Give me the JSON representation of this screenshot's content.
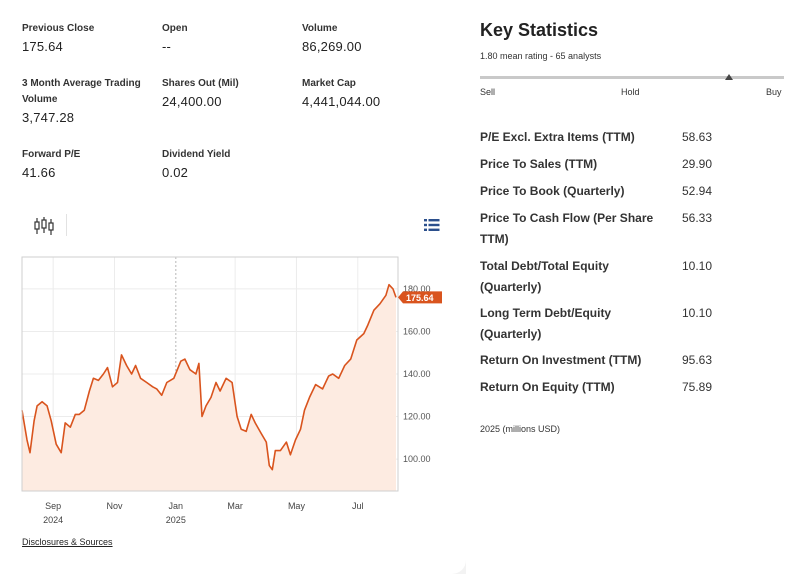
{
  "overview": {
    "stats": [
      {
        "label": "Previous Close",
        "value": "175.64"
      },
      {
        "label": "Open",
        "value": "--"
      },
      {
        "label": "Volume",
        "value": "86,269.00"
      },
      {
        "label": "3 Month Average Trading Volume",
        "value": "3,747.28"
      },
      {
        "label": "Shares Out (Mil)",
        "value": "24,400.00"
      },
      {
        "label": "Market Cap",
        "value": "4,441,044.00"
      },
      {
        "label": "Forward P/E",
        "value": "41.66"
      },
      {
        "label": "Dividend Yield",
        "value": "0.02"
      }
    ]
  },
  "toolbar": {
    "chart_type_icon": "candlestick-icon",
    "menu_icon": "list-menu-icon"
  },
  "chart_data": {
    "type": "area",
    "title": "",
    "ylim": [
      85,
      195
    ],
    "y_ticks": [
      "100.00",
      "120.00",
      "140.00",
      "160.00",
      "180.00"
    ],
    "x_ticks": [
      {
        "label": "Sep",
        "sub": "2024"
      },
      {
        "label": "Nov",
        "sub": ""
      },
      {
        "label": "Jan",
        "sub": "2025"
      },
      {
        "label": "Mar",
        "sub": ""
      },
      {
        "label": "May",
        "sub": ""
      },
      {
        "label": "Jul",
        "sub": ""
      }
    ],
    "last_price_label": "175.64",
    "grid": true,
    "colors": {
      "line": "#d9541e",
      "fill": "#fdebe1",
      "badge": "#d9541e"
    },
    "series": [
      {
        "x": [
          "2024-08-01",
          "2024-08-06",
          "2024-08-09",
          "2024-08-13",
          "2024-08-16",
          "2024-08-21",
          "2024-08-26",
          "2024-08-30",
          "2024-09-04",
          "2024-09-09",
          "2024-09-13",
          "2024-09-18",
          "2024-09-23",
          "2024-09-27",
          "2024-10-02",
          "2024-10-07",
          "2024-10-11",
          "2024-10-16",
          "2024-10-21",
          "2024-10-25",
          "2024-10-30",
          "2024-11-04",
          "2024-11-08",
          "2024-11-13",
          "2024-11-18",
          "2024-11-22",
          "2024-11-27",
          "2024-12-03",
          "2024-12-09",
          "2024-12-13",
          "2024-12-18",
          "2024-12-23",
          "2024-12-30",
          "2025-01-06",
          "2025-01-10",
          "2025-01-15",
          "2025-01-21",
          "2025-01-24",
          "2025-01-27",
          "2025-01-31",
          "2025-02-05",
          "2025-02-10",
          "2025-02-14",
          "2025-02-20",
          "2025-02-26",
          "2025-03-03",
          "2025-03-07",
          "2025-03-12",
          "2025-03-17",
          "2025-03-21",
          "2025-03-27",
          "2025-04-01",
          "2025-04-04",
          "2025-04-07",
          "2025-04-10",
          "2025-04-15",
          "2025-04-21",
          "2025-04-25",
          "2025-04-30",
          "2025-05-05",
          "2025-05-09",
          "2025-05-14",
          "2025-05-20",
          "2025-05-27",
          "2025-06-02",
          "2025-06-06",
          "2025-06-12",
          "2025-06-18",
          "2025-06-24",
          "2025-06-30",
          "2025-07-07",
          "2025-07-11",
          "2025-07-17",
          "2025-07-23",
          "2025-07-29",
          "2025-08-01",
          "2025-08-05",
          "2025-08-08"
        ],
        "values": [
          123,
          109,
          103,
          118,
          125,
          127,
          125,
          118,
          107,
          103,
          117,
          115,
          121,
          121,
          123,
          132,
          138,
          137,
          140,
          143,
          134,
          136,
          149,
          144,
          140,
          144,
          138,
          136,
          134,
          133,
          130,
          136,
          138,
          146,
          147,
          142,
          140,
          145,
          120,
          125,
          129,
          136,
          132,
          138,
          136,
          120,
          114,
          113,
          121,
          117,
          112,
          108,
          97,
          95,
          104,
          104,
          108,
          102,
          109,
          114,
          123,
          129,
          135,
          133,
          139,
          140,
          138,
          144,
          147,
          156,
          159,
          163,
          170,
          173,
          177,
          182,
          180,
          176
        ]
      }
    ]
  },
  "footer": {
    "disclosures_link": "Disclosures & Sources"
  },
  "key_statistics": {
    "title": "Key Statistics",
    "rating_text": "1.80 mean rating - 65 analysts",
    "rating_scale": {
      "sell": "Sell",
      "hold": "Hold",
      "buy": "Buy"
    },
    "rating_position": 0.82,
    "ratios": [
      {
        "label": "P/E Excl. Extra Items (TTM)",
        "value": "58.63"
      },
      {
        "label": "Price To Sales (TTM)",
        "value": "29.90"
      },
      {
        "label": "Price To Book (Quarterly)",
        "value": "52.94"
      },
      {
        "label": "Price To Cash Flow (Per Share TTM)",
        "value": "56.33"
      },
      {
        "label": "Total Debt/Total Equity (Quarterly)",
        "value": "10.10"
      },
      {
        "label": "Long Term Debt/Equity (Quarterly)",
        "value": "10.10"
      },
      {
        "label": "Return On Investment (TTM)",
        "value": "95.63"
      },
      {
        "label": "Return On Equity (TTM)",
        "value": "75.89"
      }
    ],
    "footnote": "2025 (millions USD)"
  }
}
